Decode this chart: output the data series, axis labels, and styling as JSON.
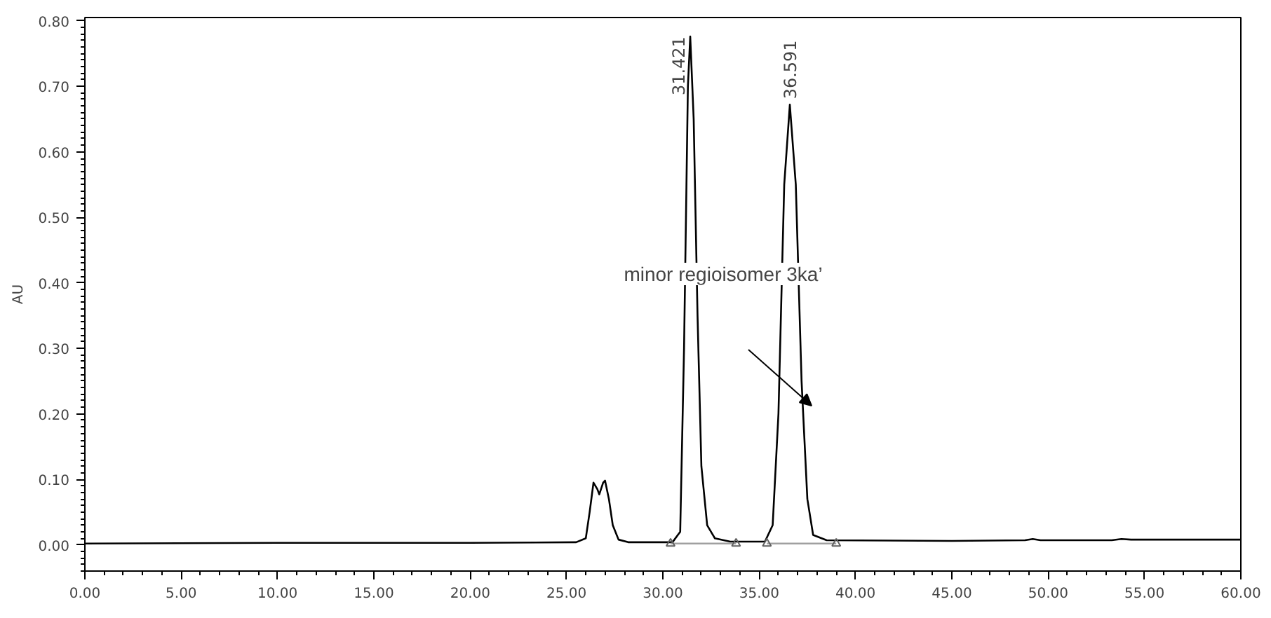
{
  "chart_data": {
    "type": "line",
    "ylabel": "AU",
    "xlim": [
      0,
      60
    ],
    "ylim": [
      -0.04,
      0.805
    ],
    "xticks": [
      {
        "value": 0,
        "label": "0.00"
      },
      {
        "value": 5,
        "label": "5.00"
      },
      {
        "value": 10,
        "label": "10.00"
      },
      {
        "value": 15,
        "label": "15.00"
      },
      {
        "value": 20,
        "label": "20.00"
      },
      {
        "value": 25,
        "label": "25.00"
      },
      {
        "value": 30,
        "label": "30.00"
      },
      {
        "value": 35,
        "label": "35.00"
      },
      {
        "value": 40,
        "label": "40.00"
      },
      {
        "value": 45,
        "label": "45.00"
      },
      {
        "value": 50,
        "label": "50.00"
      },
      {
        "value": 55,
        "label": "55.00"
      },
      {
        "value": 60,
        "label": "60.00"
      }
    ],
    "yticks": [
      {
        "value": 0,
        "label": "0.00"
      },
      {
        "value": 0.1,
        "label": "0.10"
      },
      {
        "value": 0.2,
        "label": "0.20"
      },
      {
        "value": 0.3,
        "label": "0.30"
      },
      {
        "value": 0.4,
        "label": "0.40"
      },
      {
        "value": 0.5,
        "label": "0.50"
      },
      {
        "value": 0.6,
        "label": "0.60"
      },
      {
        "value": 0.7,
        "label": "0.70"
      },
      {
        "value": 0.8,
        "label": "0.80"
      }
    ],
    "grid": false,
    "series": [
      {
        "color": "#000000",
        "x": [
          0,
          10,
          20,
          25.5,
          26.0,
          26.2,
          26.4,
          26.6,
          26.7,
          26.9,
          27.0,
          27.2,
          27.4,
          27.7,
          28.2,
          30.5,
          30.9,
          31.1,
          31.3,
          31.421,
          31.6,
          31.8,
          32.0,
          32.3,
          32.7,
          33.5,
          35.3,
          35.7,
          36.0,
          36.3,
          36.591,
          36.9,
          37.2,
          37.5,
          37.8,
          38.5,
          45,
          48.8,
          49.2,
          49.6,
          53.3,
          53.8,
          54.3,
          60
        ],
        "values": [
          0.002,
          0.003,
          0.003,
          0.004,
          0.01,
          0.05,
          0.095,
          0.085,
          0.077,
          0.095,
          0.098,
          0.07,
          0.03,
          0.008,
          0.004,
          0.004,
          0.02,
          0.3,
          0.7,
          0.776,
          0.65,
          0.35,
          0.12,
          0.03,
          0.01,
          0.005,
          0.005,
          0.03,
          0.2,
          0.55,
          0.672,
          0.55,
          0.25,
          0.07,
          0.015,
          0.007,
          0.006,
          0.007,
          0.009,
          0.007,
          0.007,
          0.009,
          0.008,
          0.008
        ]
      },
      {
        "type": "line",
        "color": "#a0a0a0",
        "x": [
          30.4,
          33.8,
          34.6,
          35.4,
          39.0
        ],
        "values": [
          0.002,
          0.002,
          null,
          0.002,
          0.002
        ]
      },
      {
        "type": "scatter",
        "marker": "triangle",
        "color": "#606060",
        "x": [
          30.4,
          33.8,
          35.4,
          39.0
        ],
        "values": [
          0.002,
          0.002,
          0.002,
          0.002
        ]
      }
    ],
    "annotations": [
      {
        "text": "31.421",
        "x": 31.421,
        "y": 0.776
      },
      {
        "text": "36.591",
        "x": 36.591,
        "y": 0.672
      },
      "minor regioisomer 3ka’"
    ]
  }
}
